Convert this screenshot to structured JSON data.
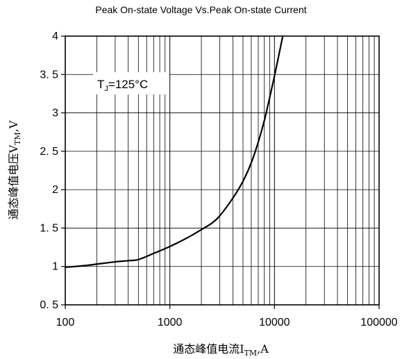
{
  "chart_data": {
    "type": "line",
    "title": "Peak On-state Voltage Vs.Peak On-state Current",
    "xlabel": {
      "main": "通态峰值电流I",
      "sub": "TM",
      "tail": ",A"
    },
    "ylabel": {
      "main": "通态峰值电压V",
      "sub": "TM",
      "tail": ",V"
    },
    "x_scale": "log",
    "xlim": [
      100,
      100000
    ],
    "ylim": [
      0.5,
      4
    ],
    "x_ticks": [
      100,
      1000,
      10000,
      100000
    ],
    "x_tick_labels": [
      "100",
      "1000",
      "10000",
      "100000"
    ],
    "y_ticks": [
      0.5,
      1,
      1.5,
      2,
      2.5,
      3,
      3.5,
      4
    ],
    "y_tick_labels": [
      "0. 5",
      "1",
      "1. 5",
      "2",
      "2. 5",
      "3",
      "3. 5",
      "4"
    ],
    "grid": true,
    "annotation": {
      "main": "T",
      "sub": "J",
      "tail": "=125°C"
    },
    "series": [
      {
        "x": [
          100,
          150,
          200,
          300,
          400,
          500,
          700,
          1000,
          1500,
          2000,
          2500,
          3000,
          4000,
          5000,
          6000,
          7000,
          8000,
          9000,
          10000,
          11000,
          12000
        ],
        "y": [
          0.99,
          1.01,
          1.03,
          1.06,
          1.075,
          1.09,
          1.17,
          1.26,
          1.38,
          1.48,
          1.56,
          1.66,
          1.89,
          2.11,
          2.35,
          2.62,
          2.9,
          3.2,
          3.48,
          3.75,
          4.0
        ]
      }
    ]
  }
}
